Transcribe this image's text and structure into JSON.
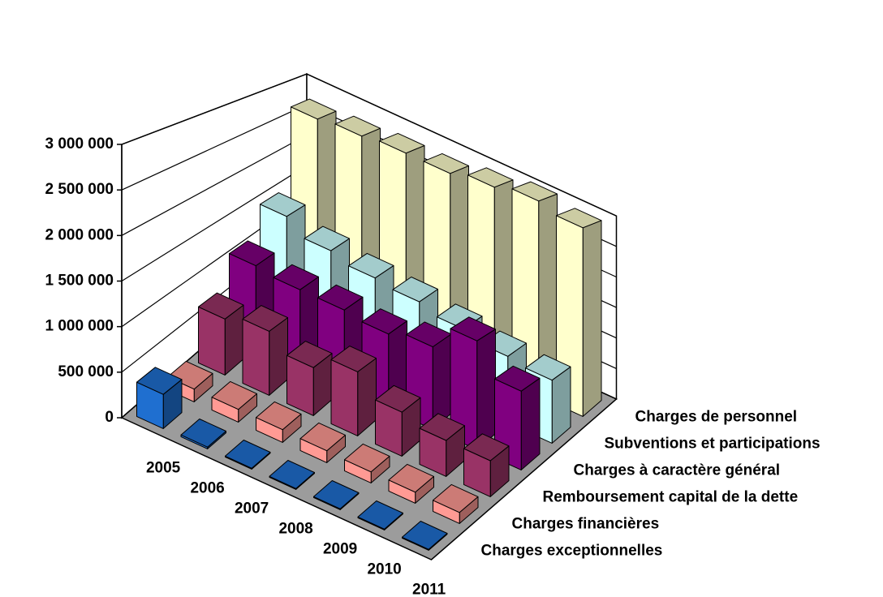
{
  "chart_data": {
    "type": "bar3d",
    "categories": [
      "2005",
      "2006",
      "2007",
      "2008",
      "2009",
      "2010",
      "2011"
    ],
    "series": [
      {
        "name": "Charges exceptionnelles",
        "color": "#1f6fd0",
        "values": [
          380000,
          20000,
          10000,
          10000,
          10000,
          10000,
          10000
        ]
      },
      {
        "name": "Charges financières",
        "color": "#ff9a94",
        "values": [
          150000,
          150000,
          150000,
          140000,
          130000,
          130000,
          130000
        ]
      },
      {
        "name": "Remboursement capital de la dette",
        "color": "#993366",
        "values": [
          700000,
          800000,
          600000,
          800000,
          550000,
          450000,
          450000
        ]
      },
      {
        "name": "Charges à caractère général",
        "color": "#800080",
        "values": [
          1100000,
          1050000,
          1050000,
          1000000,
          1100000,
          1450000,
          1050000
        ]
      },
      {
        "name": "Subventions et participations",
        "color": "#ccffff",
        "values": [
          1500000,
          1300000,
          1200000,
          1150000,
          1050000,
          950000,
          900000
        ]
      },
      {
        "name": "Charges de personnel",
        "color": "#ffffcc",
        "values": [
          2700000,
          2750000,
          2800000,
          2800000,
          2900000,
          3000000,
          2900000
        ]
      }
    ],
    "ylim": [
      0,
      3000000
    ],
    "yticks": [
      0,
      {
        "value": 500000,
        "label": "500 000"
      },
      {
        "value": 1000000,
        "label": "1 000 000"
      },
      {
        "value": 1500000,
        "label": "1 500 000"
      },
      {
        "value": 2000000,
        "label": "2 000 000"
      },
      {
        "value": 2500000,
        "label": "2 500 000"
      },
      {
        "value": 3000000,
        "label": "3 000 000"
      }
    ],
    "grid": true
  }
}
